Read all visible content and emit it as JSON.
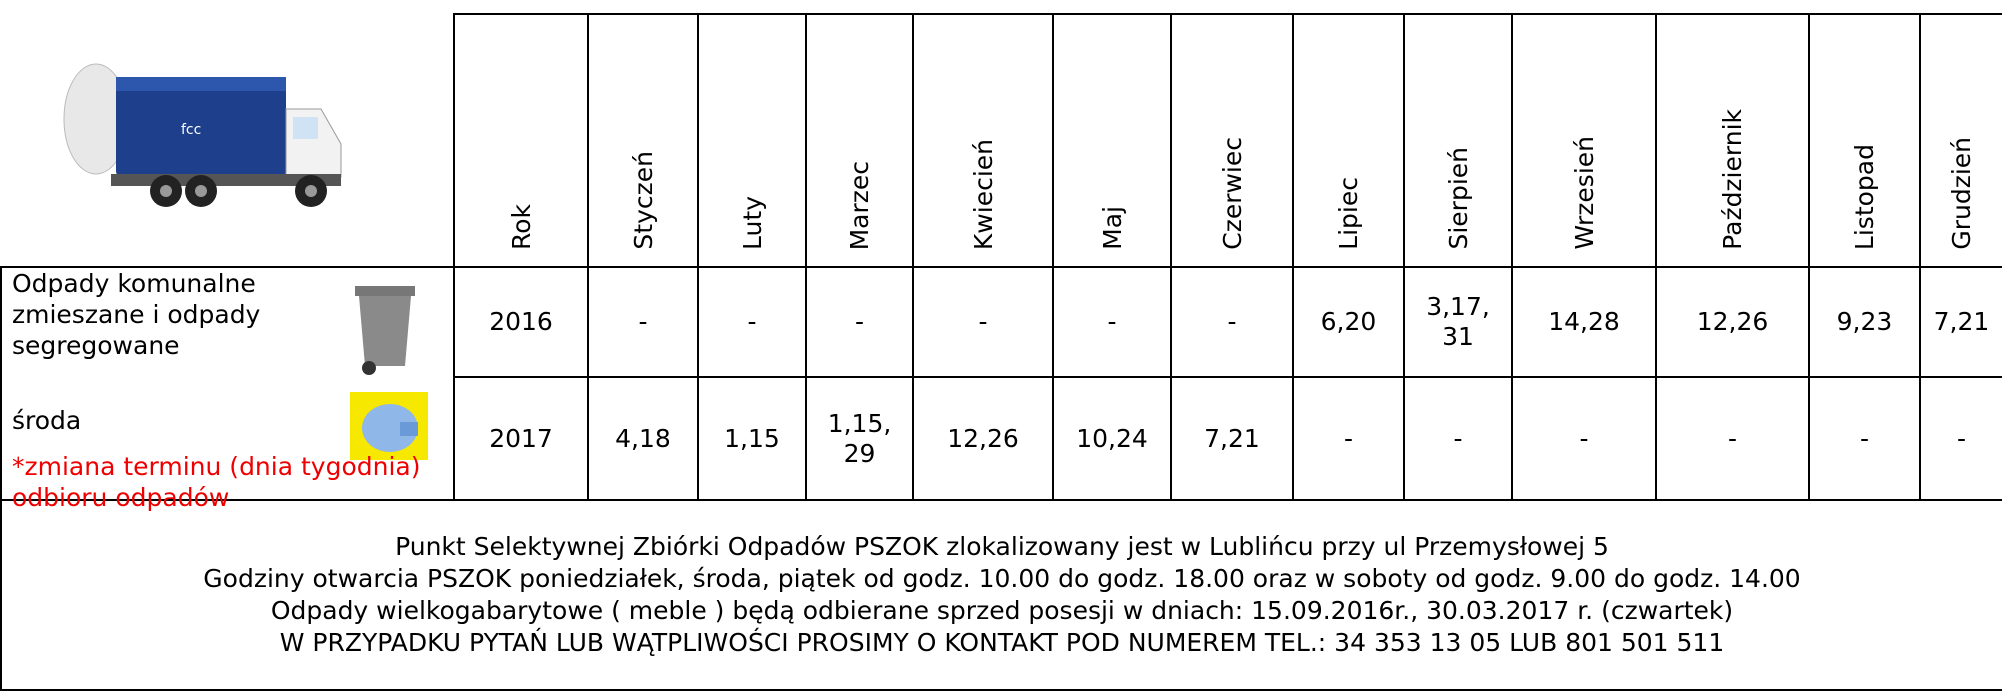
{
  "header": {
    "columns": [
      "Rok",
      "Styczeń",
      "Luty",
      "Marzec",
      "Kwiecień",
      "Maj",
      "Czerwiec",
      "Lipiec",
      "Sierpień",
      "Wrzesień",
      "Październik",
      "Listopad",
      "Grudzień"
    ]
  },
  "legend": {
    "label": "Odpady komunalne zmieszane i odpady segregowane",
    "day": "środa",
    "note": "*zmiana terminu  (dnia tygodnia)  odbioru odpadów"
  },
  "rows": [
    {
      "cells": [
        "2016",
        "-",
        "-",
        "-",
        "-",
        "-",
        "-",
        "6,20",
        "3,17,31",
        "14,28",
        "12,26",
        "9,23",
        "7,21"
      ]
    },
    {
      "cells": [
        "2017",
        "4,18",
        "1,15",
        "1,15,29",
        "12,26",
        "10,24",
        "7,21",
        "-",
        "-",
        "-",
        "-",
        "-",
        "-"
      ]
    }
  ],
  "footer": {
    "lines": [
      "Punkt Selektywnej Zbiórki Odpadów PSZOK zlokalizowany jest w Lublińcu przy ul Przemysłowej 5",
      "Godziny otwarcia PSZOK poniedziałek, środa, piątek od godz. 10.00 do godz. 18.00 oraz w soboty od godz. 9.00 do godz. 14.00",
      "Odpady wielkogabarytowe ( meble ) będą odbierane sprzed posesji w dniach: 15.09.2016r., 30.03.2017 r. (czwartek)",
      "W PRZYPADKU PYTAŃ LUB WĄTPLIWOŚCI PROSIMY O KONTAKT  POD NUMEREM TEL.: 34 353 13 05 LUB 801 501 511"
    ]
  }
}
